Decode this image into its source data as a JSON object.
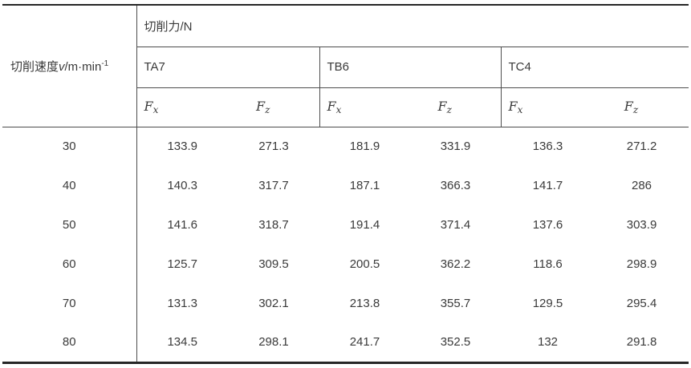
{
  "page": {
    "background": "#ffffff",
    "text_color": "#3a3a3a",
    "thin_line_color": "#4d4d4d",
    "thick_line_color": "#262626"
  },
  "table": {
    "speed_header": {
      "prefix": "切削速度",
      "variable": "v",
      "unit": "/m·min",
      "exponent": "-1"
    },
    "force_header": "切削力/N",
    "materials": [
      "TA7",
      "TB6",
      "TC4"
    ],
    "component_fx": {
      "base": "F",
      "sub": "x"
    },
    "component_fz": {
      "base": "F",
      "sub": "z"
    },
    "rows": [
      {
        "v": "30",
        "ta7": [
          "133.9",
          "271.3"
        ],
        "tb6": [
          "181.9",
          "331.9"
        ],
        "tc4": [
          "136.3",
          "271.2"
        ]
      },
      {
        "v": "40",
        "ta7": [
          "140.3",
          "317.7"
        ],
        "tb6": [
          "187.1",
          "366.3"
        ],
        "tc4": [
          "141.7",
          "286"
        ]
      },
      {
        "v": "50",
        "ta7": [
          "141.6",
          "318.7"
        ],
        "tb6": [
          "191.4",
          "371.4"
        ],
        "tc4": [
          "137.6",
          "303.9"
        ]
      },
      {
        "v": "60",
        "ta7": [
          "125.7",
          "309.5"
        ],
        "tb6": [
          "200.5",
          "362.2"
        ],
        "tc4": [
          "118.6",
          "298.9"
        ]
      },
      {
        "v": "70",
        "ta7": [
          "131.3",
          "302.1"
        ],
        "tb6": [
          "213.8",
          "355.7"
        ],
        "tc4": [
          "129.5",
          "295.4"
        ]
      },
      {
        "v": "80",
        "ta7": [
          "134.5",
          "298.1"
        ],
        "tb6": [
          "241.7",
          "352.5"
        ],
        "tc4": [
          "132",
          "291.8"
        ]
      }
    ]
  },
  "chart_data": {
    "type": "table",
    "title": "切削力/N",
    "xlabel": "切削速度v/m·min⁻¹",
    "x": [
      30,
      40,
      50,
      60,
      70,
      80
    ],
    "series": [
      {
        "name": "TA7 Fx",
        "values": [
          133.9,
          140.3,
          141.6,
          125.7,
          131.3,
          134.5
        ]
      },
      {
        "name": "TA7 Fz",
        "values": [
          271.3,
          317.7,
          318.7,
          309.5,
          302.1,
          298.1
        ]
      },
      {
        "name": "TB6 Fx",
        "values": [
          181.9,
          187.1,
          191.4,
          200.5,
          213.8,
          241.7
        ]
      },
      {
        "name": "TB6 Fz",
        "values": [
          331.9,
          366.3,
          371.4,
          362.2,
          355.7,
          352.5
        ]
      },
      {
        "name": "TC4 Fx",
        "values": [
          136.3,
          141.7,
          137.6,
          118.6,
          129.5,
          132
        ]
      },
      {
        "name": "TC4 Fz",
        "values": [
          271.2,
          286,
          303.9,
          298.9,
          295.4,
          291.8
        ]
      }
    ]
  }
}
